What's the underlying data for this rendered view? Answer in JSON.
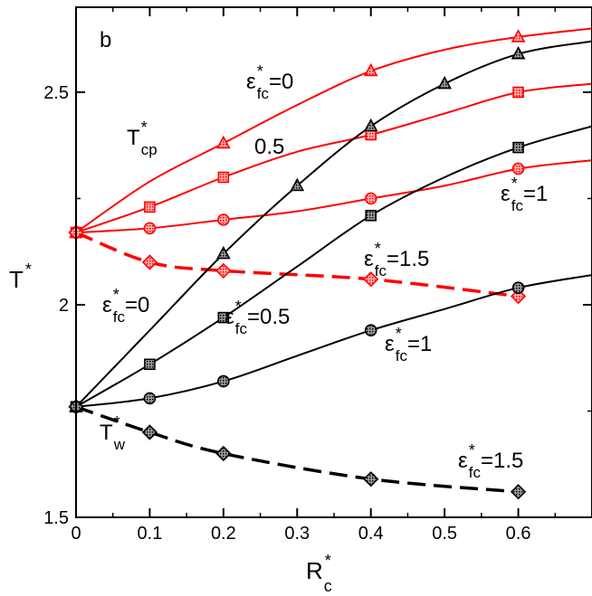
{
  "chart_data": {
    "type": "line",
    "panel_label": "b",
    "xlabel": {
      "base": "R",
      "sup": "*",
      "sub": "c"
    },
    "ylabel": {
      "base": "T",
      "sup": "*"
    },
    "xlim": [
      0,
      0.7
    ],
    "ylim": [
      1.5,
      2.7
    ],
    "x_ticks": [
      "0",
      "0.1",
      "0.2",
      "0.3",
      "0.4",
      "0.5",
      "0.6"
    ],
    "x_tick_values": [
      0,
      0.1,
      0.2,
      0.3,
      0.4,
      0.5,
      0.6
    ],
    "y_ticks": [
      "1.5",
      "2",
      "2.5"
    ],
    "y_tick_values": [
      1.5,
      2.0,
      2.5
    ],
    "y_minor_tick_values": [
      1.75,
      2.25
    ],
    "grid": false,
    "colors": {
      "red": "#ff0000",
      "black": "#000000"
    },
    "series": [
      {
        "group": "T_cp",
        "epsilon_fc": 0,
        "color": "red",
        "marker": "triangle",
        "dashed": false,
        "x": [
          0,
          0.2,
          0.4,
          0.6
        ],
        "y": [
          2.17,
          2.38,
          2.55,
          2.63
        ],
        "curve_x": [
          0,
          0.1,
          0.2,
          0.3,
          0.4,
          0.5,
          0.6,
          0.7
        ],
        "curve_y": [
          2.17,
          2.29,
          2.38,
          2.47,
          2.55,
          2.6,
          2.63,
          2.65
        ]
      },
      {
        "group": "T_cp",
        "epsilon_fc": 0.5,
        "color": "red",
        "marker": "square",
        "dashed": false,
        "x": [
          0,
          0.1,
          0.2,
          0.4,
          0.6
        ],
        "y": [
          2.17,
          2.23,
          2.3,
          2.4,
          2.5
        ],
        "curve_x": [
          0,
          0.1,
          0.2,
          0.3,
          0.4,
          0.5,
          0.6,
          0.7
        ],
        "curve_y": [
          2.17,
          2.23,
          2.3,
          2.36,
          2.4,
          2.45,
          2.5,
          2.52
        ]
      },
      {
        "group": "T_cp",
        "epsilon_fc": 1,
        "color": "red",
        "marker": "circle",
        "dashed": false,
        "x": [
          0,
          0.1,
          0.2,
          0.4,
          0.6
        ],
        "y": [
          2.17,
          2.18,
          2.2,
          2.25,
          2.32
        ],
        "curve_x": [
          0,
          0.1,
          0.2,
          0.3,
          0.4,
          0.5,
          0.6,
          0.7
        ],
        "curve_y": [
          2.17,
          2.18,
          2.2,
          2.22,
          2.25,
          2.28,
          2.32,
          2.34
        ]
      },
      {
        "group": "T_cp",
        "epsilon_fc": 1.5,
        "color": "red",
        "marker": "diamond",
        "dashed": true,
        "x": [
          0,
          0.1,
          0.2,
          0.4,
          0.6
        ],
        "y": [
          2.17,
          2.1,
          2.08,
          2.06,
          2.02
        ],
        "curve_x": [
          0,
          0.1,
          0.2,
          0.4,
          0.6
        ],
        "curve_y": [
          2.17,
          2.1,
          2.08,
          2.06,
          2.02
        ]
      },
      {
        "group": "T_w",
        "epsilon_fc": 0,
        "color": "black",
        "marker": "triangle",
        "dashed": false,
        "x": [
          0,
          0.2,
          0.3,
          0.4,
          0.5,
          0.6
        ],
        "y": [
          1.76,
          2.12,
          2.28,
          2.42,
          2.52,
          2.59
        ],
        "curve_x": [
          0,
          0.1,
          0.2,
          0.3,
          0.4,
          0.5,
          0.6,
          0.7
        ],
        "curve_y": [
          1.76,
          1.94,
          2.12,
          2.28,
          2.42,
          2.52,
          2.59,
          2.62
        ]
      },
      {
        "group": "T_w",
        "epsilon_fc": 0.5,
        "color": "black",
        "marker": "square",
        "dashed": false,
        "x": [
          0,
          0.1,
          0.2,
          0.4,
          0.6
        ],
        "y": [
          1.76,
          1.86,
          1.97,
          2.21,
          2.37
        ],
        "curve_x": [
          0,
          0.1,
          0.2,
          0.3,
          0.4,
          0.5,
          0.6,
          0.7
        ],
        "curve_y": [
          1.76,
          1.86,
          1.97,
          2.09,
          2.21,
          2.3,
          2.37,
          2.42
        ]
      },
      {
        "group": "T_w",
        "epsilon_fc": 1,
        "color": "black",
        "marker": "circle",
        "dashed": false,
        "x": [
          0,
          0.1,
          0.2,
          0.4,
          0.6
        ],
        "y": [
          1.76,
          1.78,
          1.82,
          1.94,
          2.04
        ],
        "curve_x": [
          0,
          0.1,
          0.2,
          0.3,
          0.4,
          0.5,
          0.6,
          0.7
        ],
        "curve_y": [
          1.76,
          1.78,
          1.82,
          1.88,
          1.94,
          1.99,
          2.04,
          2.07
        ]
      },
      {
        "group": "T_w",
        "epsilon_fc": 1.5,
        "color": "black",
        "marker": "diamond",
        "dashed": true,
        "x": [
          0,
          0.1,
          0.2,
          0.4,
          0.6
        ],
        "y": [
          1.76,
          1.7,
          1.65,
          1.59,
          1.56
        ],
        "curve_x": [
          0,
          0.1,
          0.2,
          0.4,
          0.6
        ],
        "curve_y": [
          1.76,
          1.7,
          1.65,
          1.59,
          1.56
        ]
      }
    ],
    "annotations": [
      {
        "id": "red-eps-0",
        "main": "ε",
        "sup": "*",
        "sub": "fc",
        "tail": "=0"
      },
      {
        "id": "red-eps-0.5",
        "main": "",
        "sup": "",
        "sub": "",
        "tail": "0.5"
      },
      {
        "id": "red-eps-1",
        "main": "ε",
        "sup": "*",
        "sub": "fc",
        "tail": "=1"
      },
      {
        "id": "red-eps-1.5",
        "main": "ε",
        "sup": "*",
        "sub": "fc",
        "tail": "=1.5"
      },
      {
        "id": "tcp-label",
        "main": "T",
        "sup": "*",
        "sub": "cp",
        "tail": ""
      },
      {
        "id": "blk-eps-0",
        "main": "ε",
        "sup": "*",
        "sub": "fc",
        "tail": "=0"
      },
      {
        "id": "blk-eps-0.5",
        "main": "ε",
        "sup": "*",
        "sub": "fc",
        "tail": "=0.5"
      },
      {
        "id": "blk-eps-1",
        "main": "ε",
        "sup": "*",
        "sub": "fc",
        "tail": "=1"
      },
      {
        "id": "blk-eps-1.5",
        "main": "ε",
        "sup": "*",
        "sub": "fc",
        "tail": "=1.5"
      },
      {
        "id": "tw-label",
        "main": "T",
        "sup": "*",
        "sub": "w",
        "tail": ""
      }
    ]
  }
}
